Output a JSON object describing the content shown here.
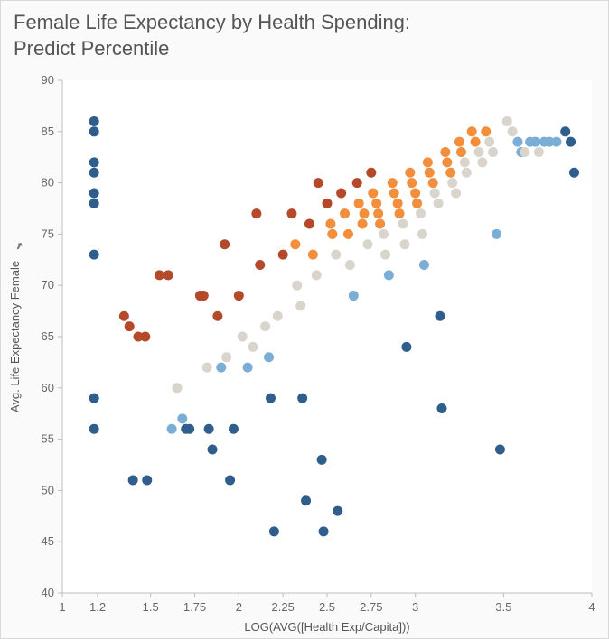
{
  "chart": {
    "type": "scatter",
    "title_line1": "Female Life Expectancy by Health Spending:",
    "title_line2": "Predict Percentile",
    "title_fontsize": 22,
    "xlabel": "LOG(AVG([Health Exp/Capita]))",
    "ylabel": "Avg. Life Expectancy Female",
    "label_fontsize": 13,
    "tick_fontsize": 13,
    "xlim": [
      1,
      4
    ],
    "ylim": [
      40,
      90
    ],
    "xticks": [
      1,
      1.2,
      1.5,
      1.75,
      2,
      2.25,
      2.5,
      2.75,
      3,
      3.5,
      4
    ],
    "xtick_labels": [
      "1",
      "1.2",
      "1.5",
      "1.75",
      "2",
      "2.25",
      "2.5",
      "2.75",
      "3",
      "3.5",
      "4"
    ],
    "yticks": [
      40,
      45,
      50,
      55,
      60,
      65,
      70,
      75,
      80,
      85,
      90
    ],
    "ytick_labels": [
      "40",
      "45",
      "50",
      "55",
      "60",
      "65",
      "70",
      "75",
      "80",
      "85",
      "90"
    ],
    "background_color": "#ffffff",
    "frame_background": "#fafafa",
    "border_color": "#d9d9d9",
    "axis_color": "#bfbfbf",
    "marker_radius": 5.5,
    "marker_opacity": 1.0,
    "colors": {
      "dark_blue": "#2f5e8c",
      "light_blue": "#7aaed6",
      "gray": "#d9d4cc",
      "orange": "#f28e3c",
      "brown": "#b44a2a"
    },
    "points": [
      {
        "x": 1.18,
        "y": 86,
        "c": "dark_blue"
      },
      {
        "x": 1.18,
        "y": 85,
        "c": "dark_blue"
      },
      {
        "x": 1.18,
        "y": 82,
        "c": "dark_blue"
      },
      {
        "x": 1.18,
        "y": 81,
        "c": "dark_blue"
      },
      {
        "x": 1.18,
        "y": 79,
        "c": "dark_blue"
      },
      {
        "x": 1.18,
        "y": 78,
        "c": "dark_blue"
      },
      {
        "x": 1.18,
        "y": 73,
        "c": "dark_blue"
      },
      {
        "x": 1.18,
        "y": 59,
        "c": "dark_blue"
      },
      {
        "x": 1.18,
        "y": 56,
        "c": "dark_blue"
      },
      {
        "x": 1.35,
        "y": 67,
        "c": "brown"
      },
      {
        "x": 1.38,
        "y": 66,
        "c": "brown"
      },
      {
        "x": 1.4,
        "y": 51,
        "c": "dark_blue"
      },
      {
        "x": 1.43,
        "y": 65,
        "c": "brown"
      },
      {
        "x": 1.47,
        "y": 65,
        "c": "brown"
      },
      {
        "x": 1.48,
        "y": 51,
        "c": "dark_blue"
      },
      {
        "x": 1.55,
        "y": 71,
        "c": "brown"
      },
      {
        "x": 1.6,
        "y": 71,
        "c": "brown"
      },
      {
        "x": 1.62,
        "y": 56,
        "c": "light_blue"
      },
      {
        "x": 1.65,
        "y": 60,
        "c": "gray"
      },
      {
        "x": 1.68,
        "y": 57,
        "c": "light_blue"
      },
      {
        "x": 1.7,
        "y": 56,
        "c": "dark_blue"
      },
      {
        "x": 1.72,
        "y": 56,
        "c": "dark_blue"
      },
      {
        "x": 1.78,
        "y": 69,
        "c": "brown"
      },
      {
        "x": 1.8,
        "y": 69,
        "c": "brown"
      },
      {
        "x": 1.82,
        "y": 62,
        "c": "gray"
      },
      {
        "x": 1.83,
        "y": 56,
        "c": "dark_blue"
      },
      {
        "x": 1.85,
        "y": 54,
        "c": "dark_blue"
      },
      {
        "x": 1.88,
        "y": 67,
        "c": "brown"
      },
      {
        "x": 1.9,
        "y": 62,
        "c": "light_blue"
      },
      {
        "x": 1.92,
        "y": 74,
        "c": "brown"
      },
      {
        "x": 1.93,
        "y": 63,
        "c": "gray"
      },
      {
        "x": 1.95,
        "y": 51,
        "c": "dark_blue"
      },
      {
        "x": 1.97,
        "y": 56,
        "c": "dark_blue"
      },
      {
        "x": 2.0,
        "y": 69,
        "c": "brown"
      },
      {
        "x": 2.02,
        "y": 65,
        "c": "gray"
      },
      {
        "x": 2.05,
        "y": 62,
        "c": "light_blue"
      },
      {
        "x": 2.08,
        "y": 64,
        "c": "gray"
      },
      {
        "x": 2.1,
        "y": 77,
        "c": "brown"
      },
      {
        "x": 2.12,
        "y": 72,
        "c": "brown"
      },
      {
        "x": 2.15,
        "y": 66,
        "c": "gray"
      },
      {
        "x": 2.17,
        "y": 63,
        "c": "light_blue"
      },
      {
        "x": 2.18,
        "y": 59,
        "c": "dark_blue"
      },
      {
        "x": 2.2,
        "y": 46,
        "c": "dark_blue"
      },
      {
        "x": 2.22,
        "y": 67,
        "c": "gray"
      },
      {
        "x": 2.25,
        "y": 73,
        "c": "brown"
      },
      {
        "x": 2.3,
        "y": 77,
        "c": "brown"
      },
      {
        "x": 2.32,
        "y": 74,
        "c": "orange"
      },
      {
        "x": 2.33,
        "y": 70,
        "c": "gray"
      },
      {
        "x": 2.35,
        "y": 68,
        "c": "gray"
      },
      {
        "x": 2.36,
        "y": 59,
        "c": "dark_blue"
      },
      {
        "x": 2.38,
        "y": 49,
        "c": "dark_blue"
      },
      {
        "x": 2.4,
        "y": 76,
        "c": "brown"
      },
      {
        "x": 2.42,
        "y": 73,
        "c": "orange"
      },
      {
        "x": 2.44,
        "y": 71,
        "c": "gray"
      },
      {
        "x": 2.45,
        "y": 80,
        "c": "brown"
      },
      {
        "x": 2.47,
        "y": 53,
        "c": "dark_blue"
      },
      {
        "x": 2.48,
        "y": 46,
        "c": "dark_blue"
      },
      {
        "x": 2.5,
        "y": 78,
        "c": "brown"
      },
      {
        "x": 2.52,
        "y": 76,
        "c": "orange"
      },
      {
        "x": 2.53,
        "y": 75,
        "c": "orange"
      },
      {
        "x": 2.55,
        "y": 73,
        "c": "gray"
      },
      {
        "x": 2.56,
        "y": 48,
        "c": "dark_blue"
      },
      {
        "x": 2.58,
        "y": 79,
        "c": "brown"
      },
      {
        "x": 2.6,
        "y": 77,
        "c": "orange"
      },
      {
        "x": 2.62,
        "y": 75,
        "c": "orange"
      },
      {
        "x": 2.63,
        "y": 72,
        "c": "gray"
      },
      {
        "x": 2.65,
        "y": 69,
        "c": "light_blue"
      },
      {
        "x": 2.67,
        "y": 80,
        "c": "brown"
      },
      {
        "x": 2.68,
        "y": 78,
        "c": "orange"
      },
      {
        "x": 2.7,
        "y": 76,
        "c": "orange"
      },
      {
        "x": 2.71,
        "y": 77,
        "c": "orange"
      },
      {
        "x": 2.73,
        "y": 74,
        "c": "gray"
      },
      {
        "x": 2.75,
        "y": 81,
        "c": "brown"
      },
      {
        "x": 2.76,
        "y": 79,
        "c": "orange"
      },
      {
        "x": 2.78,
        "y": 78,
        "c": "orange"
      },
      {
        "x": 2.79,
        "y": 77,
        "c": "orange"
      },
      {
        "x": 2.8,
        "y": 76,
        "c": "orange"
      },
      {
        "x": 2.82,
        "y": 75,
        "c": "gray"
      },
      {
        "x": 2.83,
        "y": 73,
        "c": "gray"
      },
      {
        "x": 2.85,
        "y": 71,
        "c": "light_blue"
      },
      {
        "x": 2.87,
        "y": 80,
        "c": "orange"
      },
      {
        "x": 2.88,
        "y": 79,
        "c": "orange"
      },
      {
        "x": 2.9,
        "y": 78,
        "c": "orange"
      },
      {
        "x": 2.91,
        "y": 77,
        "c": "orange"
      },
      {
        "x": 2.93,
        "y": 76,
        "c": "gray"
      },
      {
        "x": 2.94,
        "y": 74,
        "c": "gray"
      },
      {
        "x": 2.95,
        "y": 64,
        "c": "dark_blue"
      },
      {
        "x": 2.97,
        "y": 81,
        "c": "orange"
      },
      {
        "x": 2.98,
        "y": 80,
        "c": "orange"
      },
      {
        "x": 3.0,
        "y": 79,
        "c": "orange"
      },
      {
        "x": 3.01,
        "y": 78,
        "c": "orange"
      },
      {
        "x": 3.03,
        "y": 77,
        "c": "gray"
      },
      {
        "x": 3.04,
        "y": 75,
        "c": "gray"
      },
      {
        "x": 3.05,
        "y": 72,
        "c": "light_blue"
      },
      {
        "x": 3.07,
        "y": 82,
        "c": "orange"
      },
      {
        "x": 3.08,
        "y": 81,
        "c": "orange"
      },
      {
        "x": 3.1,
        "y": 80,
        "c": "orange"
      },
      {
        "x": 3.11,
        "y": 79,
        "c": "gray"
      },
      {
        "x": 3.13,
        "y": 78,
        "c": "gray"
      },
      {
        "x": 3.14,
        "y": 67,
        "c": "dark_blue"
      },
      {
        "x": 3.15,
        "y": 58,
        "c": "dark_blue"
      },
      {
        "x": 3.17,
        "y": 83,
        "c": "orange"
      },
      {
        "x": 3.18,
        "y": 82,
        "c": "orange"
      },
      {
        "x": 3.2,
        "y": 81,
        "c": "orange"
      },
      {
        "x": 3.21,
        "y": 80,
        "c": "gray"
      },
      {
        "x": 3.23,
        "y": 79,
        "c": "gray"
      },
      {
        "x": 3.25,
        "y": 84,
        "c": "orange"
      },
      {
        "x": 3.26,
        "y": 83,
        "c": "orange"
      },
      {
        "x": 3.28,
        "y": 82,
        "c": "gray"
      },
      {
        "x": 3.29,
        "y": 81,
        "c": "gray"
      },
      {
        "x": 3.32,
        "y": 85,
        "c": "orange"
      },
      {
        "x": 3.34,
        "y": 84,
        "c": "orange"
      },
      {
        "x": 3.36,
        "y": 83,
        "c": "gray"
      },
      {
        "x": 3.38,
        "y": 82,
        "c": "gray"
      },
      {
        "x": 3.4,
        "y": 85,
        "c": "orange"
      },
      {
        "x": 3.42,
        "y": 84,
        "c": "gray"
      },
      {
        "x": 3.44,
        "y": 83,
        "c": "gray"
      },
      {
        "x": 3.46,
        "y": 75,
        "c": "light_blue"
      },
      {
        "x": 3.48,
        "y": 54,
        "c": "dark_blue"
      },
      {
        "x": 3.52,
        "y": 86,
        "c": "gray"
      },
      {
        "x": 3.55,
        "y": 85,
        "c": "gray"
      },
      {
        "x": 3.58,
        "y": 84,
        "c": "light_blue"
      },
      {
        "x": 3.6,
        "y": 83,
        "c": "light_blue"
      },
      {
        "x": 3.62,
        "y": 83,
        "c": "gray"
      },
      {
        "x": 3.65,
        "y": 84,
        "c": "light_blue"
      },
      {
        "x": 3.68,
        "y": 84,
        "c": "light_blue"
      },
      {
        "x": 3.7,
        "y": 83,
        "c": "gray"
      },
      {
        "x": 3.73,
        "y": 84,
        "c": "light_blue"
      },
      {
        "x": 3.76,
        "y": 84,
        "c": "light_blue"
      },
      {
        "x": 3.8,
        "y": 84,
        "c": "light_blue"
      },
      {
        "x": 3.85,
        "y": 85,
        "c": "dark_blue"
      },
      {
        "x": 3.88,
        "y": 84,
        "c": "dark_blue"
      },
      {
        "x": 3.9,
        "y": 81,
        "c": "dark_blue"
      }
    ]
  }
}
